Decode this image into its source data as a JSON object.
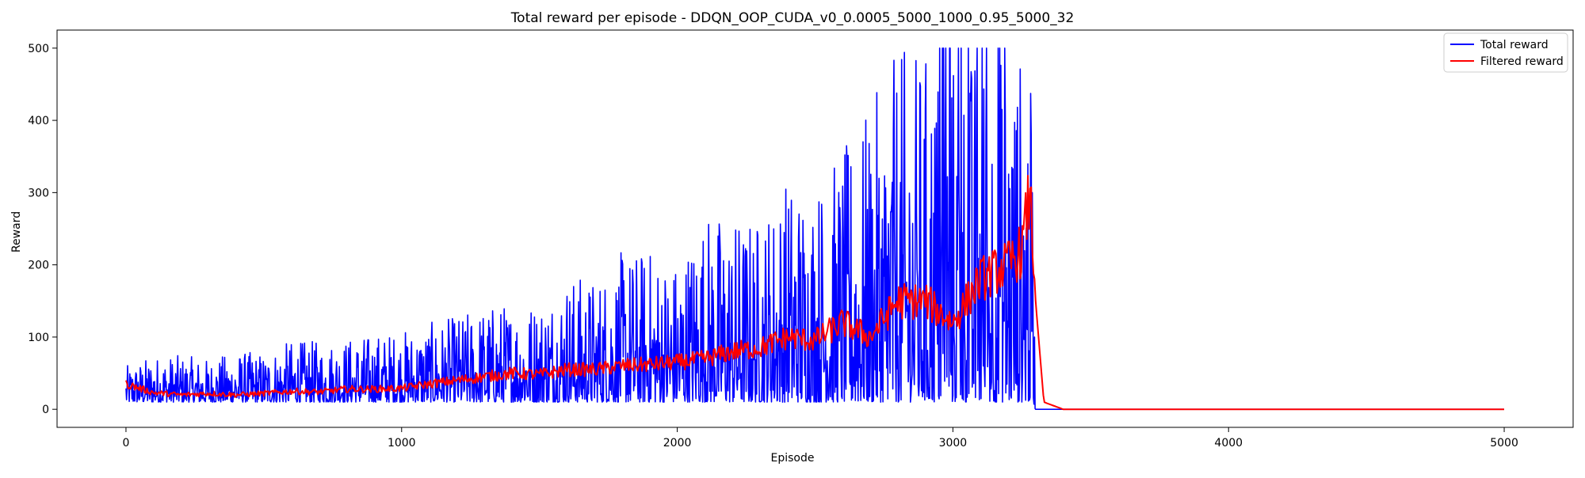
{
  "chart_data": {
    "type": "line",
    "title": "Total reward per episode - DDQN_OOP_CUDA_v0_0.0005_5000_1000_0.95_5000_32",
    "xlabel": "Episode",
    "ylabel": "Reward",
    "xlim": [
      -250,
      5250
    ],
    "ylim": [
      -25,
      525
    ],
    "xticks": [
      0,
      1000,
      2000,
      3000,
      4000,
      5000
    ],
    "xtick_labels": [
      "0",
      "1000",
      "2000",
      "3000",
      "4000",
      "5000"
    ],
    "yticks": [
      0,
      100,
      200,
      300,
      400,
      500
    ],
    "ytick_labels": [
      "0",
      "100",
      "200",
      "300",
      "400",
      "500"
    ],
    "grid": false,
    "legend_position": "top-right",
    "x": [
      0,
      100,
      200,
      300,
      400,
      500,
      600,
      700,
      800,
      900,
      1000,
      1100,
      1200,
      1300,
      1400,
      1500,
      1600,
      1700,
      1800,
      1900,
      2000,
      2100,
      2200,
      2300,
      2400,
      2500,
      2600,
      2700,
      2800,
      2900,
      3000,
      3100,
      3200,
      3250,
      3280,
      3300,
      3330,
      3400,
      4000,
      5000
    ],
    "series": [
      {
        "name": "Total reward",
        "color": "#0000ff",
        "min_envelope": [
          10,
          10,
          10,
          10,
          10,
          10,
          10,
          10,
          10,
          10,
          10,
          10,
          10,
          10,
          10,
          10,
          10,
          10,
          10,
          10,
          10,
          10,
          10,
          10,
          10,
          10,
          10,
          10,
          10,
          10,
          10,
          10,
          10,
          10,
          10,
          0,
          0,
          0,
          0,
          0
        ],
        "max_envelope": [
          60,
          75,
          75,
          70,
          80,
          80,
          95,
          95,
          100,
          105,
          110,
          120,
          130,
          145,
          150,
          155,
          190,
          185,
          220,
          225,
          210,
          280,
          270,
          270,
          330,
          320,
          360,
          420,
          500,
          500,
          500,
          500,
          500,
          500,
          500,
          0,
          0,
          0,
          0,
          0
        ]
      },
      {
        "name": "Filtered reward",
        "color": "#ff0000",
        "values": [
          35,
          23,
          20,
          22,
          20,
          22,
          25,
          24,
          28,
          28,
          29,
          35,
          40,
          45,
          50,
          48,
          55,
          55,
          60,
          62,
          65,
          70,
          80,
          85,
          100,
          95,
          120,
          100,
          150,
          150,
          120,
          180,
          200,
          220,
          300,
          150,
          10,
          0,
          0,
          0
        ]
      }
    ]
  }
}
